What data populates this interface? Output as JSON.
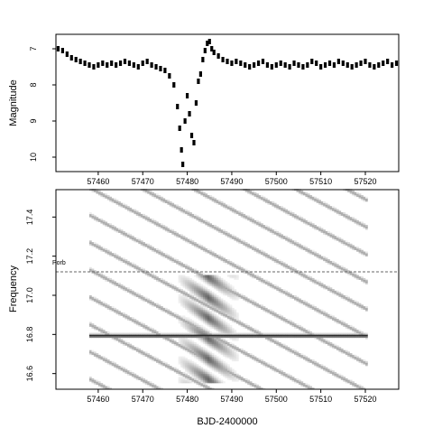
{
  "chart_data": [
    {
      "type": "scatter",
      "title": "",
      "xlabel": "",
      "ylabel": "Magnitude",
      "xlim": [
        57450.5,
        57527.5
      ],
      "ylim": [
        10.4,
        6.6
      ],
      "y_inverted": true,
      "x_ticks": [
        57460,
        57470,
        57480,
        57490,
        57500,
        57510,
        57520
      ],
      "x_tick_labels": [
        "57460",
        "57470",
        "57480",
        "57490",
        "57500",
        "57510",
        "57520"
      ],
      "y_ticks": [
        7,
        8,
        9,
        10
      ],
      "y_tick_labels": [
        "7",
        "8",
        "9",
        "10"
      ],
      "grid": false,
      "color": "#000000",
      "series": [
        {
          "x": [
            57451.0,
            57452.0,
            57453.0,
            57454.0,
            57455.0,
            57456.0,
            57457.0,
            57458.0,
            57459.0,
            57460.0,
            57461.0,
            57462.0,
            57463.0,
            57464.0,
            57465.0,
            57466.0,
            57467.0,
            57468.0,
            57469.0,
            57470.0,
            57471.0,
            57472.0,
            57473.0,
            57474.0,
            57475.0,
            57476.0,
            57477.0,
            57477.8,
            57478.3,
            57478.7,
            57479.0,
            57479.5,
            57480.0,
            57480.5,
            57481.0,
            57481.5,
            57482.0,
            57482.5,
            57483.0,
            57483.5,
            57484.0,
            57484.5,
            57485.0,
            57485.5,
            57486.0,
            57487.0,
            57488.0,
            57489.0,
            57490.0,
            57491.0,
            57492.0,
            57493.0,
            57494.0,
            57495.0,
            57496.0,
            57497.0,
            57498.0,
            57499.0,
            57500.0,
            57501.0,
            57502.0,
            57503.0,
            57504.0,
            57505.0,
            57506.0,
            57507.0,
            57508.0,
            57509.0,
            57510.0,
            57511.0,
            57512.0,
            57513.0,
            57514.0,
            57515.0,
            57516.0,
            57517.0,
            57518.0,
            57519.0,
            57520.0,
            57521.0,
            57522.0,
            57523.0,
            57524.0,
            57525.0,
            57526.0,
            57527.0
          ],
          "y": [
            7.0,
            7.05,
            7.15,
            7.25,
            7.3,
            7.35,
            7.4,
            7.45,
            7.5,
            7.45,
            7.4,
            7.45,
            7.4,
            7.45,
            7.4,
            7.35,
            7.4,
            7.45,
            7.5,
            7.4,
            7.35,
            7.45,
            7.5,
            7.55,
            7.6,
            7.75,
            8.0,
            8.6,
            9.2,
            9.8,
            10.2,
            9.0,
            8.3,
            8.8,
            9.4,
            9.6,
            8.5,
            7.9,
            7.7,
            7.3,
            7.05,
            6.85,
            6.8,
            7.0,
            7.1,
            7.2,
            7.3,
            7.35,
            7.4,
            7.35,
            7.4,
            7.45,
            7.5,
            7.45,
            7.4,
            7.35,
            7.45,
            7.5,
            7.45,
            7.4,
            7.45,
            7.5,
            7.4,
            7.45,
            7.5,
            7.45,
            7.35,
            7.4,
            7.5,
            7.45,
            7.4,
            7.45,
            7.35,
            7.4,
            7.45,
            7.5,
            7.45,
            7.4,
            7.35,
            7.45,
            7.5,
            7.45,
            7.4,
            7.35,
            7.45,
            7.4
          ]
        }
      ]
    },
    {
      "type": "heatmap",
      "title": "",
      "xlabel": "BJD-2400000",
      "ylabel": "Frequency",
      "xlim": [
        57450.5,
        57527.5
      ],
      "ylim": [
        16.52,
        17.54
      ],
      "x_ticks": [
        57460,
        57470,
        57480,
        57490,
        57500,
        57510,
        57520
      ],
      "x_tick_labels": [
        "57460",
        "57470",
        "57480",
        "57490",
        "57500",
        "57510",
        "57520"
      ],
      "y_ticks": [
        16.6,
        16.8,
        17.0,
        17.2,
        17.4
      ],
      "y_tick_labels": [
        "16.6",
        "16.8",
        "17.0",
        "17.2",
        "17.4"
      ],
      "grid": false,
      "colormap": "grayscale (white = low, black = high)",
      "data_x_range": [
        57458,
        57520
      ],
      "features": [
        {
          "description": "strong superhump signal",
          "x": [
            57458,
            57520
          ],
          "frequency": [
            16.79,
            16.79
          ],
          "strength": 1.0
        },
        {
          "description": "broad high-power region",
          "x": [
            57477,
            57492
          ],
          "frequency": [
            16.55,
            17.1
          ],
          "strength": 0.6
        }
      ],
      "reference_lines": [
        {
          "label": "Porb",
          "frequency": 17.12,
          "style": "dashed"
        }
      ]
    }
  ]
}
